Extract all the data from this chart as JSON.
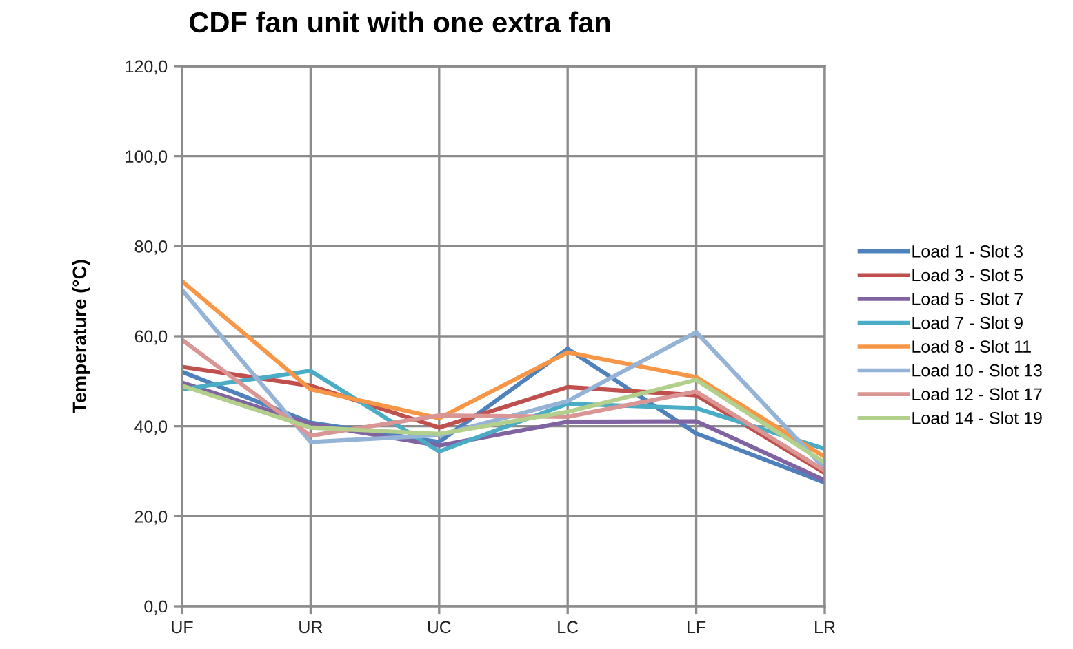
{
  "chart_data": {
    "type": "line",
    "title": "CDF fan unit with one extra fan",
    "ylabel": "Temperature (°C)",
    "categories": [
      "UF",
      "UR",
      "UC",
      "LC",
      "LF",
      "LR"
    ],
    "series": [
      {
        "name": "Load 1 - Slot 3",
        "color": "#4f81bd",
        "values": [
          52.1,
          40.8,
          36.5,
          57.2,
          38.4,
          27.5
        ]
      },
      {
        "name": "Load 3 - Slot 5",
        "color": "#c0504d",
        "values": [
          53.2,
          49.0,
          39.7,
          48.7,
          46.9,
          29.6
        ]
      },
      {
        "name": "Load 5 - Slot 7",
        "color": "#8064a2",
        "values": [
          49.7,
          40.5,
          35.7,
          41.0,
          41.1,
          28.0
        ]
      },
      {
        "name": "Load 7 - Slot 9",
        "color": "#4bacc6",
        "values": [
          48.2,
          52.3,
          34.4,
          45.0,
          44.0,
          35.0
        ]
      },
      {
        "name": "Load 8 - Slot 11",
        "color": "#f79646",
        "values": [
          72.2,
          48.2,
          41.8,
          56.4,
          50.9,
          33.2
        ]
      },
      {
        "name": "Load 10 - Slot 13",
        "color": "#95b3d7",
        "values": [
          70.3,
          36.5,
          38.0,
          45.6,
          60.9,
          30.6
        ]
      },
      {
        "name": "Load 12 - Slot 17",
        "color": "#d99694",
        "values": [
          59.2,
          37.9,
          42.4,
          42.1,
          47.7,
          30.1
        ]
      },
      {
        "name": "Load 14 - Slot 19",
        "color": "#b3cf8c",
        "values": [
          49.0,
          39.7,
          38.3,
          43.2,
          50.3,
          31.9
        ]
      }
    ],
    "ylim": [
      0,
      120
    ],
    "yticks": [
      {
        "value": 0,
        "label": "0,0"
      },
      {
        "value": 20,
        "label": "20,0"
      },
      {
        "value": 40,
        "label": "40,0"
      },
      {
        "value": 60,
        "label": "60,0"
      },
      {
        "value": 80,
        "label": "80,0"
      },
      {
        "value": 100,
        "label": "100,0"
      },
      {
        "value": 120,
        "label": "120,0"
      }
    ],
    "grid": true,
    "legend": "right",
    "marker": "none",
    "line_style": "solid"
  }
}
